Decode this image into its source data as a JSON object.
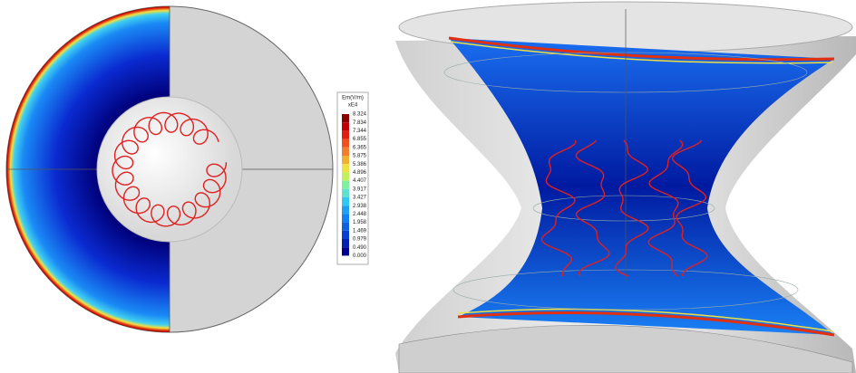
{
  "legend": {
    "title": "Em(V/m)",
    "scale": "xE4",
    "labels": [
      "8.324",
      "7.834",
      "7.344",
      "6.855",
      "6.365",
      "5.875",
      "5.386",
      "4.896",
      "4.407",
      "3.917",
      "3.427",
      "2.938",
      "2.448",
      "1.958",
      "1.469",
      "0.979",
      "0.490",
      "0.000"
    ],
    "colors": [
      "#8b0000",
      "#c00000",
      "#e02010",
      "#f05020",
      "#f08030",
      "#f0b030",
      "#f0e040",
      "#c0f060",
      "#80f0a0",
      "#60e0d0",
      "#30c8f0",
      "#20a0f0",
      "#1080f0",
      "#1060e0",
      "#0840d0",
      "#0620b0",
      "#000090"
    ]
  }
}
